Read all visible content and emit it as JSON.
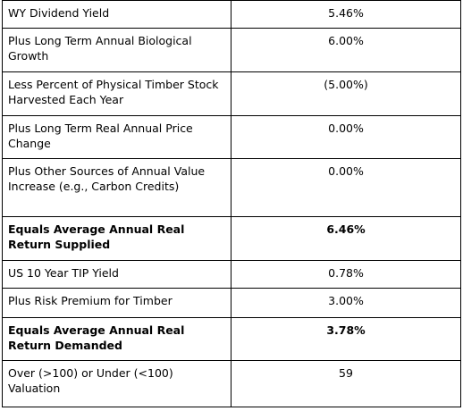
{
  "table": {
    "rows": [
      [
        "WY Dividend Yield",
        "5.46%"
      ],
      [
        "Plus Long Term Annual Biological Growth",
        "6.00%"
      ],
      [
        "Less Percent of Physical Timber Stock Harvested Each Year",
        "(5.00%)"
      ],
      [
        "Plus Long Term Real Annual Price Change",
        "0.00%"
      ],
      [
        "Plus Other Sources of Annual Value Increase (e.g., Carbon Credits)",
        "0.00%"
      ],
      [
        "Equals Average Annual Real Return Supplied",
        "6.46%"
      ],
      [
        "US 10 Year TIP Yield",
        "0.78%"
      ],
      [
        "Plus Risk Premium for Timber",
        "3.00%"
      ],
      [
        "Equals Average Annual Real Return Demanded",
        "3.78%"
      ],
      [
        "Over (>100) or Under (<100) Valuation",
        "59"
      ]
    ]
  }
}
